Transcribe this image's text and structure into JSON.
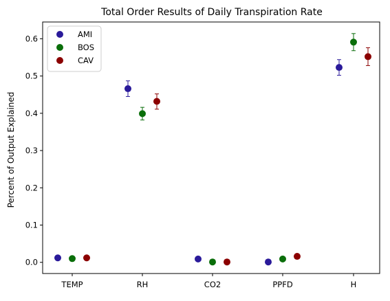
{
  "chart_data": {
    "type": "scatter",
    "title": "Total Order Results of Daily Transpiration Rate",
    "xlabel": "",
    "ylabel": "Percent of Output Explained",
    "categories": [
      "TEMP",
      "RH",
      "CO2",
      "PPFD",
      "H"
    ],
    "ylim": [
      -0.03,
      0.645
    ],
    "yticks": [
      "0.0",
      "0.1",
      "0.2",
      "0.3",
      "0.4",
      "0.5",
      "0.6"
    ],
    "grid": false,
    "legend_position": "top-left",
    "series": [
      {
        "name": "AMI",
        "color": "#2a1a9a",
        "values": [
          0.012,
          0.466,
          0.009,
          0.001,
          0.523
        ],
        "err_low": [
          null,
          0.445,
          null,
          null,
          0.502
        ],
        "err_high": [
          null,
          0.487,
          null,
          null,
          0.544
        ]
      },
      {
        "name": "BOS",
        "color": "#0a6e0a",
        "values": [
          0.01,
          0.399,
          0.001,
          0.009,
          0.591
        ],
        "err_low": [
          null,
          0.382,
          null,
          null,
          0.568
        ],
        "err_high": [
          null,
          0.416,
          null,
          null,
          0.614
        ]
      },
      {
        "name": "CAV",
        "color": "#8b0000",
        "values": [
          0.012,
          0.432,
          0.001,
          0.016,
          0.552
        ],
        "err_low": [
          null,
          0.411,
          null,
          null,
          0.528
        ],
        "err_high": [
          null,
          0.452,
          null,
          null,
          0.576
        ]
      }
    ]
  }
}
